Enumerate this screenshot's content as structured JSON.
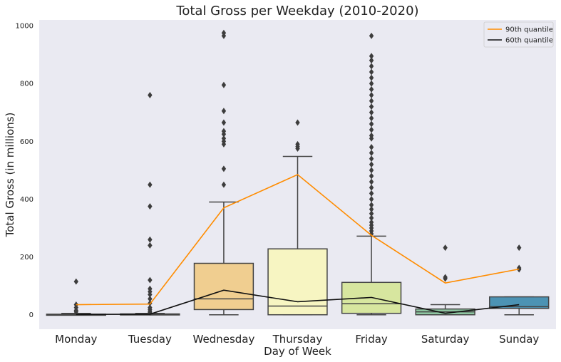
{
  "chart_data": {
    "type": "box",
    "title": "Total Gross per Weekday (2010-2020)",
    "xlabel": "Day of Week",
    "ylabel": "Total Gross (in millions)",
    "ylim": [
      -50,
      1020
    ],
    "yticks": [
      0,
      200,
      400,
      600,
      800,
      1000
    ],
    "grid": false,
    "legend_position": "top-right",
    "categories": [
      "Monday",
      "Tuesday",
      "Wednesday",
      "Thursday",
      "Friday",
      "Saturday",
      "Sunday"
    ],
    "boxes": [
      {
        "q1": 0,
        "median": 0,
        "q3": 2,
        "whisker_low": 0,
        "whisker_high": 5,
        "color": "#6f6f6f",
        "outliers": [
          10,
          15,
          25,
          35,
          115
        ]
      },
      {
        "q1": 0,
        "median": 1,
        "q3": 3,
        "whisker_low": 0,
        "whisker_high": 5,
        "color": "#7a7a7a",
        "outliers": [
          8,
          12,
          18,
          25,
          40,
          55,
          70,
          80,
          90,
          120,
          240,
          260,
          375,
          450,
          760
        ]
      },
      {
        "q1": 18,
        "median": 55,
        "q3": 178,
        "whisker_low": 0,
        "whisker_high": 390,
        "color": "#f0ce90",
        "outliers": [
          450,
          505,
          590,
          600,
          610,
          625,
          635,
          665,
          705,
          795,
          965,
          975
        ]
      },
      {
        "q1": 0,
        "median": 30,
        "q3": 228,
        "whisker_low": 0,
        "whisker_high": 548,
        "color": "#f7f5c2",
        "outliers": [
          575,
          582,
          590,
          665
        ]
      },
      {
        "q1": 5,
        "median": 38,
        "q3": 112,
        "whisker_low": 0,
        "whisker_high": 272,
        "color": "#d7e69f",
        "outliers": [
          280,
          290,
          300,
          310,
          320,
          335,
          350,
          365,
          380,
          400,
          420,
          440,
          460,
          480,
          500,
          520,
          540,
          560,
          580,
          610,
          620,
          640,
          660,
          680,
          700,
          720,
          740,
          760,
          780,
          800,
          820,
          840,
          860,
          880,
          895,
          965
        ]
      },
      {
        "q1": 0,
        "median": 10,
        "q3": 20,
        "whisker_low": 0,
        "whisker_high": 35,
        "color": "#8fc9a3",
        "outliers": [
          125,
          130,
          232
        ]
      },
      {
        "q1": 22,
        "median": 28,
        "q3": 62,
        "whisker_low": 0,
        "whisker_high": 62,
        "color": "#4c93b4",
        "outliers": [
          157,
          162,
          232
        ]
      }
    ],
    "series": [
      {
        "name": "90th quantile",
        "color": "#ff8c00",
        "values": [
          35,
          37,
          370,
          485,
          275,
          110,
          158
        ]
      },
      {
        "name": "60th quantile",
        "color": "#111111",
        "values": [
          1,
          2,
          85,
          45,
          60,
          5,
          35
        ]
      }
    ]
  }
}
